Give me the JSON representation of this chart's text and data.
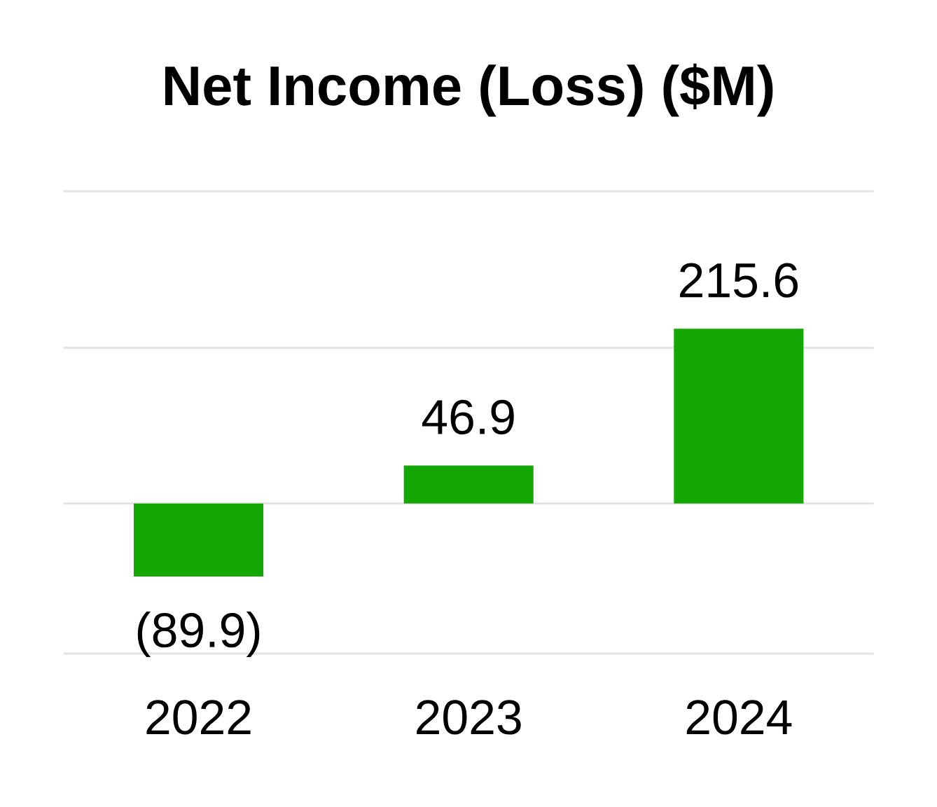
{
  "chart_data": {
    "type": "bar",
    "title": "Net Income (Loss) ($M)",
    "categories": [
      "2022",
      "2023",
      "2024"
    ],
    "values": [
      -89.9,
      46.9,
      215.6
    ],
    "color": "#15a805",
    "value_labels": [
      "(89.9)",
      "46.9",
      "215.6"
    ],
    "ylim": [
      -185,
      385
    ],
    "yticks": [
      {
        "value": -185,
        "label": null
      },
      {
        "value": 0,
        "label": null
      },
      {
        "value": 192,
        "label": null
      },
      {
        "value": 385,
        "label": null
      }
    ],
    "grid": "y"
  }
}
